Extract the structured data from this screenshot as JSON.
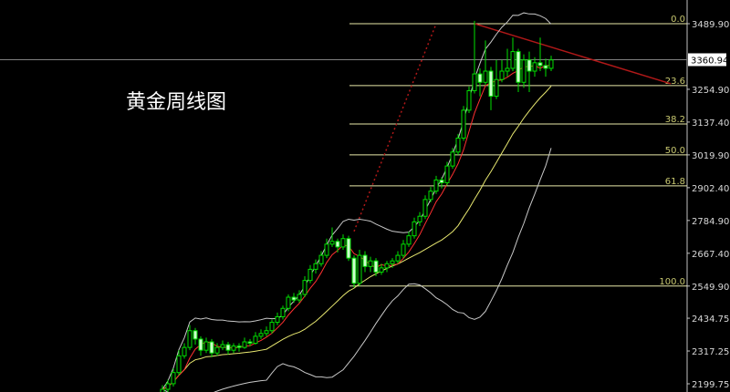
{
  "chart_data": {
    "type": "candlestick",
    "title": "黄金周线图",
    "current_price": "3360.94",
    "y_ticks": [
      "3489.90",
      "3254.90",
      "3137.40",
      "3019.90",
      "2902.40",
      "2784.90",
      "2667.40",
      "2549.90",
      "2434.75",
      "2317.25",
      "2199.75"
    ],
    "ylim": [
      2190,
      3500
    ],
    "fibonacci": {
      "high": 3489.9,
      "low": 2549.9,
      "levels": [
        {
          "label": "0.0",
          "price": 3489.9
        },
        {
          "label": "23.6",
          "price": 3268.06
        },
        {
          "label": "38.2",
          "price": 3130.82
        },
        {
          "label": "50.0",
          "price": 3019.9
        },
        {
          "label": "61.8",
          "price": 2908.98
        },
        {
          "label": "100.0",
          "price": 2549.9
        }
      ]
    },
    "trendline": {
      "from_candle": 57,
      "from_price": 3490,
      "to_price": 3275
    },
    "colors": {
      "up": "#00e000",
      "down": "#ccffcc",
      "fib": "#e8e8a8",
      "fib_label": "#c8c870",
      "trend": "#b01818",
      "ma_fast": "#ff3030",
      "ma_slow": "#e8e870",
      "bands": "#c8c8c8",
      "axis": "#c0c0c0"
    },
    "candles": [
      [
        2165,
        2195,
        2150,
        2180
      ],
      [
        2180,
        2215,
        2170,
        2200
      ],
      [
        2200,
        2255,
        2190,
        2240
      ],
      [
        2240,
        2320,
        2230,
        2300
      ],
      [
        2300,
        2345,
        2290,
        2330
      ],
      [
        2330,
        2410,
        2320,
        2390
      ],
      [
        2390,
        2400,
        2340,
        2360
      ],
      [
        2360,
        2370,
        2300,
        2320
      ],
      [
        2320,
        2365,
        2310,
        2350
      ],
      [
        2350,
        2360,
        2295,
        2310
      ],
      [
        2310,
        2345,
        2300,
        2330
      ],
      [
        2330,
        2355,
        2320,
        2340
      ],
      [
        2340,
        2350,
        2305,
        2320
      ],
      [
        2320,
        2345,
        2310,
        2335
      ],
      [
        2335,
        2345,
        2315,
        2330
      ],
      [
        2330,
        2365,
        2325,
        2350
      ],
      [
        2350,
        2360,
        2335,
        2345
      ],
      [
        2345,
        2385,
        2340,
        2370
      ],
      [
        2370,
        2395,
        2360,
        2380
      ],
      [
        2380,
        2405,
        2370,
        2390
      ],
      [
        2390,
        2430,
        2380,
        2420
      ],
      [
        2420,
        2455,
        2410,
        2440
      ],
      [
        2440,
        2480,
        2430,
        2470
      ],
      [
        2470,
        2520,
        2460,
        2510
      ],
      [
        2510,
        2525,
        2490,
        2500
      ],
      [
        2500,
        2535,
        2490,
        2520
      ],
      [
        2520,
        2585,
        2510,
        2570
      ],
      [
        2570,
        2625,
        2560,
        2610
      ],
      [
        2610,
        2645,
        2595,
        2630
      ],
      [
        2630,
        2675,
        2620,
        2660
      ],
      [
        2660,
        2720,
        2650,
        2700
      ],
      [
        2700,
        2760,
        2690,
        2710
      ],
      [
        2710,
        2720,
        2670,
        2690
      ],
      [
        2690,
        2735,
        2680,
        2720
      ],
      [
        2720,
        2730,
        2640,
        2650
      ],
      [
        2650,
        2660,
        2545,
        2560
      ],
      [
        2560,
        2680,
        2550,
        2660
      ],
      [
        2660,
        2675,
        2600,
        2620
      ],
      [
        2620,
        2655,
        2600,
        2640
      ],
      [
        2640,
        2650,
        2585,
        2600
      ],
      [
        2600,
        2630,
        2590,
        2615
      ],
      [
        2615,
        2640,
        2600,
        2630
      ],
      [
        2630,
        2650,
        2615,
        2640
      ],
      [
        2640,
        2675,
        2630,
        2660
      ],
      [
        2660,
        2715,
        2650,
        2700
      ],
      [
        2700,
        2745,
        2690,
        2730
      ],
      [
        2730,
        2795,
        2720,
        2780
      ],
      [
        2780,
        2815,
        2765,
        2800
      ],
      [
        2800,
        2875,
        2790,
        2860
      ],
      [
        2860,
        2905,
        2850,
        2890
      ],
      [
        2890,
        2945,
        2880,
        2930
      ],
      [
        2930,
        2940,
        2900,
        2920
      ],
      [
        2920,
        2995,
        2910,
        2980
      ],
      [
        2980,
        3045,
        2970,
        3030
      ],
      [
        3030,
        3095,
        3020,
        3080
      ],
      [
        3080,
        3195,
        3070,
        3180
      ],
      [
        3180,
        3265,
        3170,
        3250
      ],
      [
        3250,
        3500,
        3240,
        3310
      ],
      [
        3310,
        3330,
        3230,
        3280
      ],
      [
        3280,
        3430,
        3270,
        3320
      ],
      [
        3320,
        3335,
        3180,
        3230
      ],
      [
        3230,
        3360,
        3220,
        3290
      ],
      [
        3290,
        3360,
        3280,
        3320
      ],
      [
        3320,
        3400,
        3300,
        3330
      ],
      [
        3330,
        3440,
        3320,
        3390
      ],
      [
        3390,
        3400,
        3245,
        3280
      ],
      [
        3280,
        3380,
        3260,
        3360
      ],
      [
        3360,
        3390,
        3245,
        3320
      ],
      [
        3320,
        3370,
        3300,
        3350
      ],
      [
        3350,
        3440,
        3320,
        3340
      ],
      [
        3340,
        3365,
        3300,
        3330
      ],
      [
        3330,
        3375,
        3320,
        3360
      ]
    ]
  }
}
